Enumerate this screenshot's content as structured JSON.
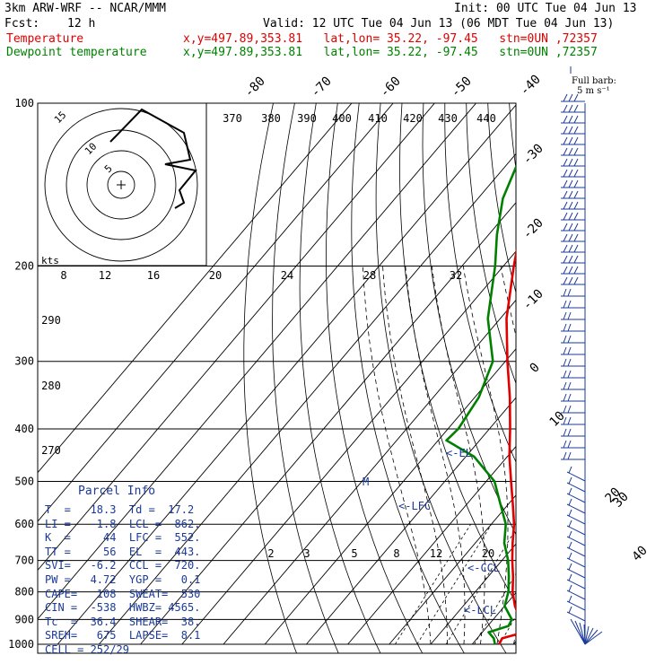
{
  "header": {
    "model": "3km ARW-WRF -- NCAR/MMM",
    "init": "Init: 00 UTC Tue 04 Jun 13",
    "fcst_label": "Fcst:",
    "fcst_value": "12 h",
    "valid": "Valid: 12 UTC Tue 04 Jun 13 (06 MDT Tue 04 Jun 13)",
    "temp_label": "Temperature",
    "temp_info": "x,y=497.89,353.81   lat,lon= 35.22, -97.45   stn=0UN ,72357",
    "dew_label": "Dewpoint temperature",
    "dew_info": "x,y=497.89,353.81   lat,lon= 35.22, -97.45   stn=0UN ,72357"
  },
  "colors": {
    "temperature": "#e00000",
    "dewpoint": "#008000",
    "text_blue": "#1a3a9a"
  },
  "wind_label": {
    "line1": "Full barb:",
    "line2": "5 m s⁻¹"
  },
  "hodograph": {
    "units": "kts",
    "ring_labels": [
      "5",
      "10",
      "15"
    ]
  },
  "parcel": {
    "title": "Parcel Info",
    "rows": [
      "T  =   18.3  Td =  17.2",
      "LI =   -1.8  LCL =  862.",
      "K  =     44  LFC =  552.",
      "TT =     56  EL  =  443.",
      "SVI=   -6.2  CCL =  720.",
      "PW =   4.72  YGP =   0.1",
      "CAPE=   108  SWEAT=  530",
      "CIN =  -538  HWBZ= 4565.",
      "Tc  =  36.4  SHEAR=  38.",
      "SREH=   675  LAPSE=  8.1",
      "CELL = 252/29"
    ]
  },
  "chart_data": {
    "type": "line",
    "subtype": "skew-T log-p",
    "y_axis": {
      "label": "",
      "scale": "log",
      "range": [
        1000,
        100
      ],
      "ticks": [
        100,
        200,
        300,
        400,
        500,
        600,
        700,
        800,
        900,
        1000
      ]
    },
    "isotherm_labels": [
      "-80",
      "-70",
      "-60",
      "-50",
      "-40",
      "-30",
      "-20",
      "-10",
      "0",
      "10",
      "20",
      "30",
      "40"
    ],
    "isotherm_values": [
      -80,
      -70,
      -60,
      -50,
      -40,
      -30,
      -20,
      -10,
      0,
      10,
      20,
      30,
      40
    ],
    "theta_labels": [
      "370",
      "380",
      "390",
      "400",
      "410",
      "420",
      "430",
      "440"
    ],
    "dry_adiabat_labels": [
      "290",
      "280",
      "270"
    ],
    "mixing_ratio_labels": [
      "2",
      "3",
      "5",
      "8",
      "12",
      "20"
    ],
    "hodo_speed_labels": [
      "8",
      "12",
      "16",
      "20",
      "24",
      "28",
      "32"
    ],
    "annotations": [
      "<-EL",
      "M",
      "<-LFC",
      "<-CCL",
      "<-LCL"
    ],
    "series": [
      {
        "name": "Temperature",
        "color": "#e00000",
        "points": [
          [
            1000,
            16.5
          ],
          [
            975,
            16.0
          ],
          [
            960,
            18.5
          ],
          [
            925,
            18.3
          ],
          [
            900,
            16.5
          ],
          [
            850,
            12.5
          ],
          [
            800,
            9.0
          ],
          [
            750,
            6.0
          ],
          [
            700,
            2.5
          ],
          [
            650,
            -1.0
          ],
          [
            600,
            -4.5
          ],
          [
            550,
            -9.0
          ],
          [
            500,
            -14.0
          ],
          [
            450,
            -19.5
          ],
          [
            400,
            -25.0
          ],
          [
            350,
            -31.5
          ],
          [
            300,
            -39.5
          ],
          [
            250,
            -48.5
          ],
          [
            200,
            -57.5
          ],
          [
            175,
            -62.5
          ],
          [
            150,
            -65.0
          ],
          [
            130,
            -62.5
          ],
          [
            115,
            -60.5
          ],
          [
            100,
            -59.5
          ]
        ]
      },
      {
        "name": "Dewpoint temperature",
        "color": "#008000",
        "points": [
          [
            1000,
            15.5
          ],
          [
            975,
            14.0
          ],
          [
            950,
            11.5
          ],
          [
            925,
            15.0
          ],
          [
            900,
            14.5
          ],
          [
            850,
            10.0
          ],
          [
            800,
            8.0
          ],
          [
            750,
            5.0
          ],
          [
            700,
            1.5
          ],
          [
            650,
            -3.0
          ],
          [
            600,
            -6.5
          ],
          [
            550,
            -12.0
          ],
          [
            500,
            -18.0
          ],
          [
            450,
            -28.0
          ],
          [
            420,
            -38.0
          ],
          [
            400,
            -37.5
          ],
          [
            350,
            -39.0
          ],
          [
            300,
            -43.0
          ],
          [
            250,
            -53.0
          ],
          [
            200,
            -62.0
          ],
          [
            175,
            -68.0
          ],
          [
            150,
            -74.0
          ],
          [
            130,
            -77.5
          ],
          [
            115,
            -81.0
          ],
          [
            100,
            -84.0
          ]
        ]
      }
    ]
  }
}
